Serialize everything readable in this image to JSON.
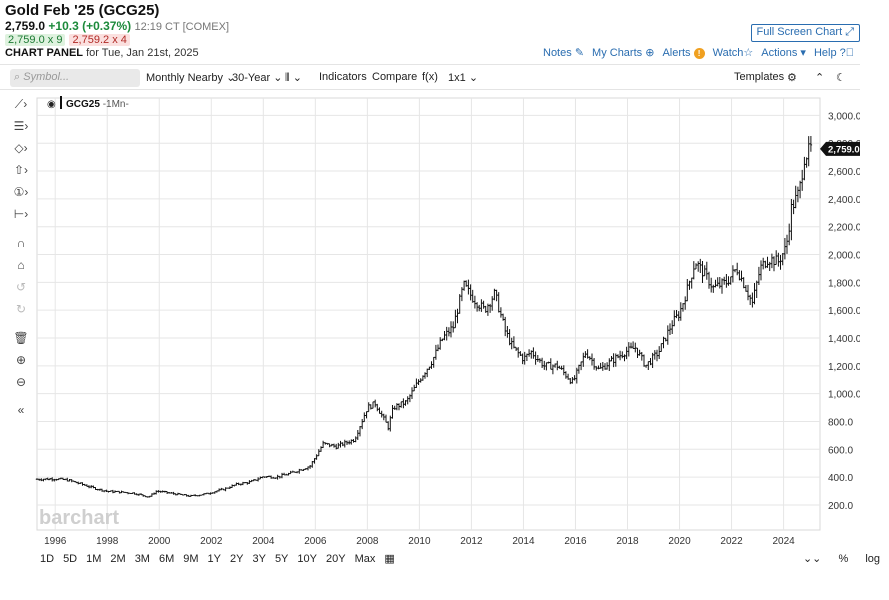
{
  "header": {
    "title": "Gold Feb '25 (GCG25)",
    "last": "2,759.0",
    "change": "+10.3 (+0.37%)",
    "time": "12:19 CT [COMEX]",
    "bid": "2,759.0 x 9",
    "ask": "2,759.2 x 4",
    "panel_label": "CHART PANEL",
    "panel_date": "for Tue, Jan 21st, 2025",
    "fullscreen_label": "Full Screen Chart",
    "links": {
      "notes": "Notes",
      "my_charts": "My Charts",
      "alerts": "Alerts",
      "watch": "Watch",
      "actions": "Actions",
      "help": "Help"
    }
  },
  "toolbar": {
    "symbol_placeholder": "Symbol...",
    "contract": "Monthly Nearby",
    "period": "30-Year",
    "indicators": "Indicators",
    "compare": "Compare",
    "fx": "f(x)",
    "layout": "1x1",
    "templates": "Templates"
  },
  "chart_data": {
    "type": "ohlc",
    "symbol_label": "GCG25",
    "interval_label": "-1Mn-",
    "x_tick_labels": [
      "1996",
      "1998",
      "2000",
      "2002",
      "2004",
      "2006",
      "2008",
      "2010",
      "2012",
      "2014",
      "2016",
      "2018",
      "2020",
      "2022",
      "2024"
    ],
    "y_tick_labels": [
      "200.0",
      "400.0",
      "600.0",
      "800.0",
      "1,000.0",
      "1,200.0",
      "1,400.0",
      "1,600.0",
      "1,800.0",
      "2,000.0",
      "2,200.0",
      "2,400.0",
      "2,600.0",
      "2,800.0",
      "3,000.0"
    ],
    "y_ticks": [
      200,
      400,
      600,
      800,
      1000,
      1200,
      1400,
      1600,
      1800,
      2000,
      2200,
      2400,
      2600,
      2800,
      3000
    ],
    "x_ticks": [
      1996,
      1998,
      2000,
      2002,
      2004,
      2006,
      2008,
      2010,
      2012,
      2014,
      2016,
      2018,
      2020,
      2022,
      2024
    ],
    "xlim": [
      1995.3,
      2025.4
    ],
    "ylim": [
      20,
      3125
    ],
    "last_value": 2759.0,
    "last_label": "2,759.0",
    "watermark": "barchart",
    "anchors": [
      [
        1995.0,
        383
      ],
      [
        1996.0,
        388
      ],
      [
        1996.5,
        378
      ],
      [
        1997.0,
        350
      ],
      [
        1997.5,
        320
      ],
      [
        1998.0,
        298
      ],
      [
        1998.5,
        292
      ],
      [
        1999.0,
        285
      ],
      [
        1999.6,
        258
      ],
      [
        1999.9,
        300
      ],
      [
        2000.5,
        282
      ],
      [
        2001.2,
        263
      ],
      [
        2001.8,
        280
      ],
      [
        2002.5,
        315
      ],
      [
        2003.0,
        350
      ],
      [
        2003.5,
        365
      ],
      [
        2004.0,
        405
      ],
      [
        2004.5,
        400
      ],
      [
        2005.0,
        425
      ],
      [
        2005.8,
        480
      ],
      [
        2006.3,
        640
      ],
      [
        2006.8,
        620
      ],
      [
        2007.5,
        670
      ],
      [
        2008.0,
        900
      ],
      [
        2008.3,
        930
      ],
      [
        2008.8,
        760
      ],
      [
        2009.0,
        900
      ],
      [
        2009.5,
        940
      ],
      [
        2010.0,
        1100
      ],
      [
        2010.5,
        1240
      ],
      [
        2010.9,
        1400
      ],
      [
        2011.3,
        1480
      ],
      [
        2011.7,
        1780
      ],
      [
        2012.0,
        1700
      ],
      [
        2012.5,
        1600
      ],
      [
        2012.9,
        1720
      ],
      [
        2013.3,
        1450
      ],
      [
        2013.6,
        1330
      ],
      [
        2014.0,
        1250
      ],
      [
        2014.3,
        1300
      ],
      [
        2014.8,
        1200
      ],
      [
        2015.3,
        1200
      ],
      [
        2015.9,
        1080
      ],
      [
        2016.4,
        1300
      ],
      [
        2016.9,
        1170
      ],
      [
        2017.5,
        1250
      ],
      [
        2017.9,
        1300
      ],
      [
        2018.3,
        1330
      ],
      [
        2018.7,
        1200
      ],
      [
        2019.2,
        1300
      ],
      [
        2019.7,
        1500
      ],
      [
        2020.0,
        1580
      ],
      [
        2020.3,
        1750
      ],
      [
        2020.6,
        1950
      ],
      [
        2021.0,
        1850
      ],
      [
        2021.3,
        1760
      ],
      [
        2021.8,
        1800
      ],
      [
        2022.2,
        1900
      ],
      [
        2022.5,
        1780
      ],
      [
        2022.8,
        1650
      ],
      [
        2023.1,
        1900
      ],
      [
        2023.4,
        1970
      ],
      [
        2023.8,
        1950
      ],
      [
        2024.1,
        2050
      ],
      [
        2024.3,
        2330
      ],
      [
        2024.6,
        2450
      ],
      [
        2024.8,
        2700
      ],
      [
        2025.05,
        2759
      ]
    ]
  },
  "range_buttons": [
    "1D",
    "5D",
    "1M",
    "2M",
    "3M",
    "6M",
    "9M",
    "1Y",
    "2Y",
    "3Y",
    "5Y",
    "10Y",
    "20Y",
    "Max"
  ],
  "bottom_right": {
    "percent": "%",
    "log": "log"
  },
  "colors": {
    "accent": "#2a6db0",
    "bar": "#111111",
    "grid": "#e6e6e6",
    "positive": "#1c8a3b",
    "negative": "#b12a26"
  }
}
